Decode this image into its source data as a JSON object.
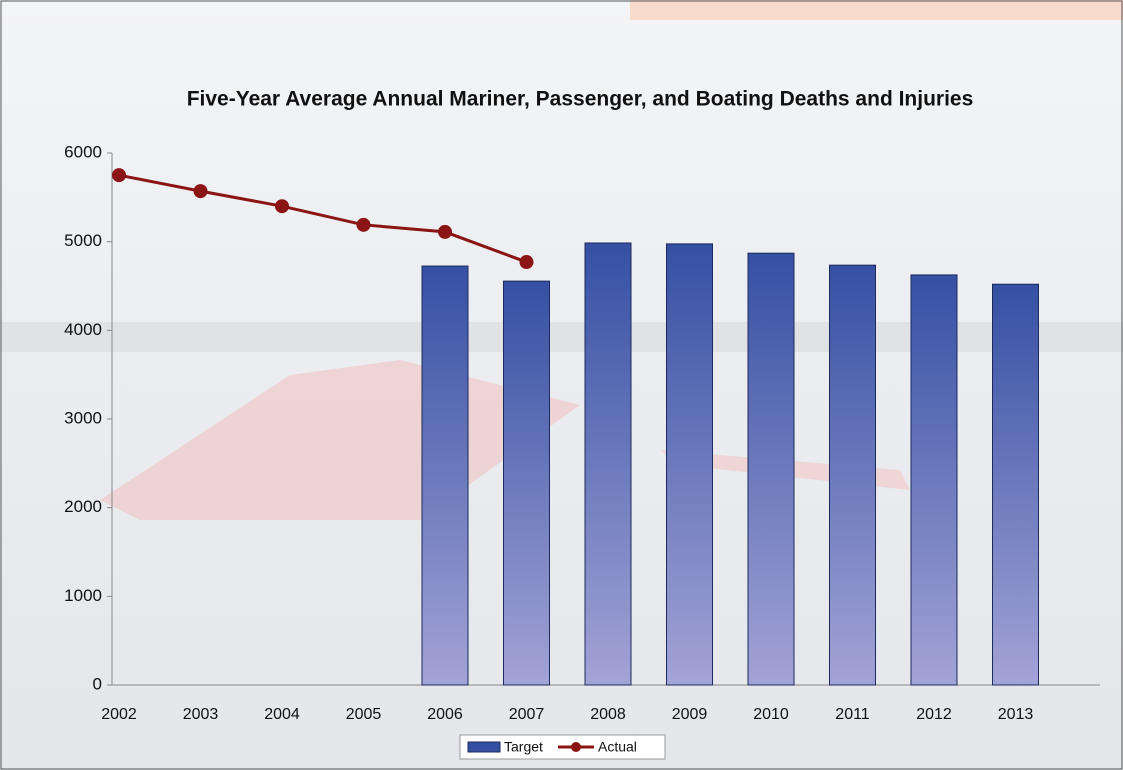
{
  "chart_data": {
    "type": "bar_line",
    "title": "Five-Year Average Annual Mariner, Passenger, and Boating Deaths and Injuries",
    "categories": [
      "2002",
      "2003",
      "2004",
      "2005",
      "2006",
      "2007",
      "2008",
      "2009",
      "2010",
      "2011",
      "2012",
      "2013"
    ],
    "series": [
      {
        "name": "Target",
        "type": "bar",
        "color": "#3550a3",
        "values": [
          null,
          null,
          null,
          null,
          4725,
          4555,
          4985,
          4975,
          4870,
          4735,
          4625,
          4520
        ]
      },
      {
        "name": "Actual",
        "type": "line",
        "color": "#8b1414",
        "values": [
          5750,
          5570,
          5400,
          5190,
          5110,
          4770,
          null,
          null,
          null,
          null,
          null,
          null
        ]
      }
    ],
    "ylim": [
      0,
      6000
    ],
    "yticks": [
      0,
      1000,
      2000,
      3000,
      4000,
      5000,
      6000
    ],
    "legend": "bottom"
  }
}
